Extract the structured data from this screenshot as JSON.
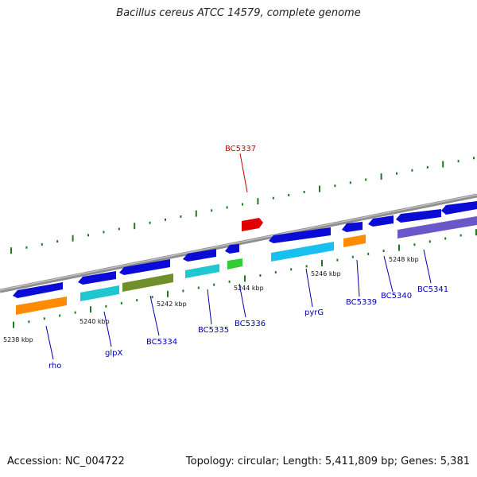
{
  "title": "Bacillus cereus ATCC 14579, complete genome",
  "footer": {
    "accession": "Accession: NC_004722",
    "summary": "Topology: circular; Length: 5,411,809 bp; Genes: 5,381"
  },
  "colors": {
    "backbone": "#8f8f8f",
    "tick": "#1f7a1f",
    "gene_label": "#0000aa",
    "highlight_label": "#cc0000",
    "cds_forward": "#0b0bd6",
    "cds_highlight": "#e00000",
    "feature_orange": "#ff8c00",
    "feature_cyan": "#20c6d0",
    "feature_olive": "#6f8f2a",
    "feature_green": "#33cc33",
    "feature_skyblue": "#18c0f0",
    "feature_purple": "#6b58c8"
  },
  "ruler": {
    "tick_labels": [
      "5238 kbp",
      "5240 kbp",
      "5242 kbp",
      "5244 kbp",
      "5246 kbp",
      "5248 kbp"
    ]
  },
  "genes": [
    {
      "name": "rho",
      "color": "gene_label"
    },
    {
      "name": "glpX",
      "color": "gene_label"
    },
    {
      "name": "BC5334",
      "color": "gene_label"
    },
    {
      "name": "BC5335",
      "color": "gene_label"
    },
    {
      "name": "BC5336",
      "color": "gene_label"
    },
    {
      "name": "BC5337",
      "color": "highlight_label"
    },
    {
      "name": "pyrG",
      "color": "gene_label"
    },
    {
      "name": "BC5339",
      "color": "gene_label"
    },
    {
      "name": "BC5340",
      "color": "gene_label"
    },
    {
      "name": "BC5341",
      "color": "gene_label"
    }
  ]
}
